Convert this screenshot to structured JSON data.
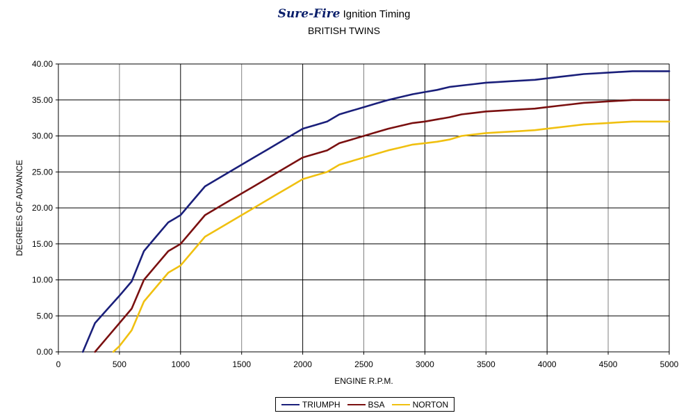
{
  "title": {
    "brand": "Sure-Fire",
    "rest": "Ignition Timing",
    "subtitle": "BRITISH TWINS"
  },
  "chart_data": {
    "type": "line",
    "xlabel": "ENGINE R.P.M.",
    "ylabel": "DEGREES OF ADVANCE",
    "xlim": [
      0,
      5000
    ],
    "ylim": [
      0,
      40
    ],
    "x_ticks": [
      "0",
      "500",
      "1000",
      "1500",
      "2000",
      "2500",
      "3000",
      "3500",
      "4000",
      "4500",
      "5000"
    ],
    "y_ticks": [
      "0.00",
      "5.00",
      "10.00",
      "15.00",
      "20.00",
      "25.00",
      "30.00",
      "35.00",
      "40.00"
    ],
    "grid": true,
    "legend_position": "bottom",
    "series": [
      {
        "name": "TRIUMPH",
        "color": "#1a1f7a",
        "x": [
          200,
          300,
          400,
          500,
          600,
          700,
          800,
          900,
          1000,
          1100,
          1200,
          1300,
          1400,
          1500,
          1600,
          1700,
          1800,
          1900,
          2000,
          2100,
          2200,
          2300,
          2400,
          2500,
          2600,
          2700,
          2800,
          2900,
          3000,
          3100,
          3200,
          3300,
          3400,
          3500,
          3600,
          3700,
          3800,
          3900,
          4000,
          4100,
          4200,
          4300,
          4400,
          4500,
          4600,
          4700,
          4800,
          4900,
          5000
        ],
        "y": [
          0,
          4,
          5.9,
          7.8,
          9.8,
          14,
          16,
          18,
          19,
          21,
          23,
          24,
          25,
          26,
          27,
          28,
          29,
          30,
          31,
          31.5,
          32,
          33,
          33.5,
          34,
          34.5,
          35,
          35.4,
          35.8,
          36.1,
          36.4,
          36.8,
          37,
          37.2,
          37.4,
          37.5,
          37.6,
          37.7,
          37.8,
          38,
          38.2,
          38.4,
          38.6,
          38.7,
          38.8,
          38.9,
          39,
          39,
          39,
          39
        ]
      },
      {
        "name": "BSA",
        "color": "#7a1010",
        "x": [
          300,
          400,
          500,
          600,
          700,
          800,
          900,
          1000,
          1100,
          1200,
          1300,
          1400,
          1500,
          1600,
          1700,
          1800,
          1900,
          2000,
          2100,
          2200,
          2300,
          2400,
          2500,
          2600,
          2700,
          2800,
          2900,
          3000,
          3100,
          3200,
          3300,
          3400,
          3500,
          3600,
          3700,
          3800,
          3900,
          4000,
          4100,
          4200,
          4300,
          4400,
          4500,
          4600,
          4700,
          4800,
          4900,
          5000
        ],
        "y": [
          0,
          2,
          4,
          6,
          10,
          12,
          14,
          15,
          17,
          19,
          20,
          21,
          22,
          23,
          24,
          25,
          26,
          27,
          27.5,
          28,
          29,
          29.5,
          30,
          30.5,
          31,
          31.4,
          31.8,
          32,
          32.3,
          32.6,
          33,
          33.2,
          33.4,
          33.5,
          33.6,
          33.7,
          33.8,
          34,
          34.2,
          34.4,
          34.6,
          34.7,
          34.8,
          34.9,
          35,
          35,
          35,
          35
        ]
      },
      {
        "name": "NORTON",
        "color": "#f0c010",
        "x": [
          450,
          500,
          600,
          700,
          800,
          900,
          1000,
          1100,
          1200,
          1300,
          1400,
          1500,
          1600,
          1700,
          1800,
          1900,
          2000,
          2100,
          2200,
          2300,
          2400,
          2500,
          2600,
          2700,
          2800,
          2900,
          3000,
          3100,
          3200,
          3300,
          3400,
          3500,
          3600,
          3700,
          3800,
          3900,
          4000,
          4100,
          4200,
          4300,
          4400,
          4500,
          4600,
          4700,
          4800,
          4900,
          5000
        ],
        "y": [
          0,
          0.8,
          3,
          7,
          9,
          11,
          12,
          14,
          16,
          17,
          18,
          19,
          20,
          21,
          22,
          23,
          24,
          24.5,
          25,
          26,
          26.5,
          27,
          27.5,
          28,
          28.4,
          28.8,
          29,
          29.2,
          29.5,
          30,
          30.2,
          30.4,
          30.5,
          30.6,
          30.7,
          30.8,
          31,
          31.2,
          31.4,
          31.6,
          31.7,
          31.8,
          31.9,
          32,
          32,
          32,
          32
        ]
      }
    ]
  }
}
